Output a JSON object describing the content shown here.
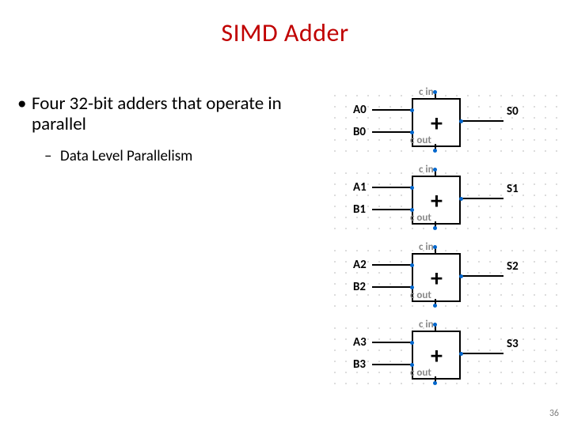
{
  "title": {
    "text": "SIMD Adder",
    "color": "#c00000",
    "fontsize": 32
  },
  "bullets": {
    "main": "Four 32-bit adders that operate in parallel",
    "sub": "Data Level Parallelism"
  },
  "page_number": "36",
  "diagram": {
    "type": "schematic",
    "label_color": "#000",
    "sublabel_color": "#888",
    "pin_color": "#0066cc",
    "box_border": "#000",
    "dot_color": "#d0d0d0",
    "adders": [
      {
        "inA": "A0",
        "inB": "B0",
        "out": "S0",
        "cin": "c in",
        "cout": "c out"
      },
      {
        "inA": "A1",
        "inB": "B1",
        "out": "S1",
        "cin": "c in",
        "cout": "c out"
      },
      {
        "inA": "A2",
        "inB": "B2",
        "out": "S2",
        "cin": "c in",
        "cout": "c out"
      },
      {
        "inA": "A3",
        "inB": "B3",
        "out": "S3",
        "cin": "c in",
        "cout": "c out"
      }
    ]
  }
}
